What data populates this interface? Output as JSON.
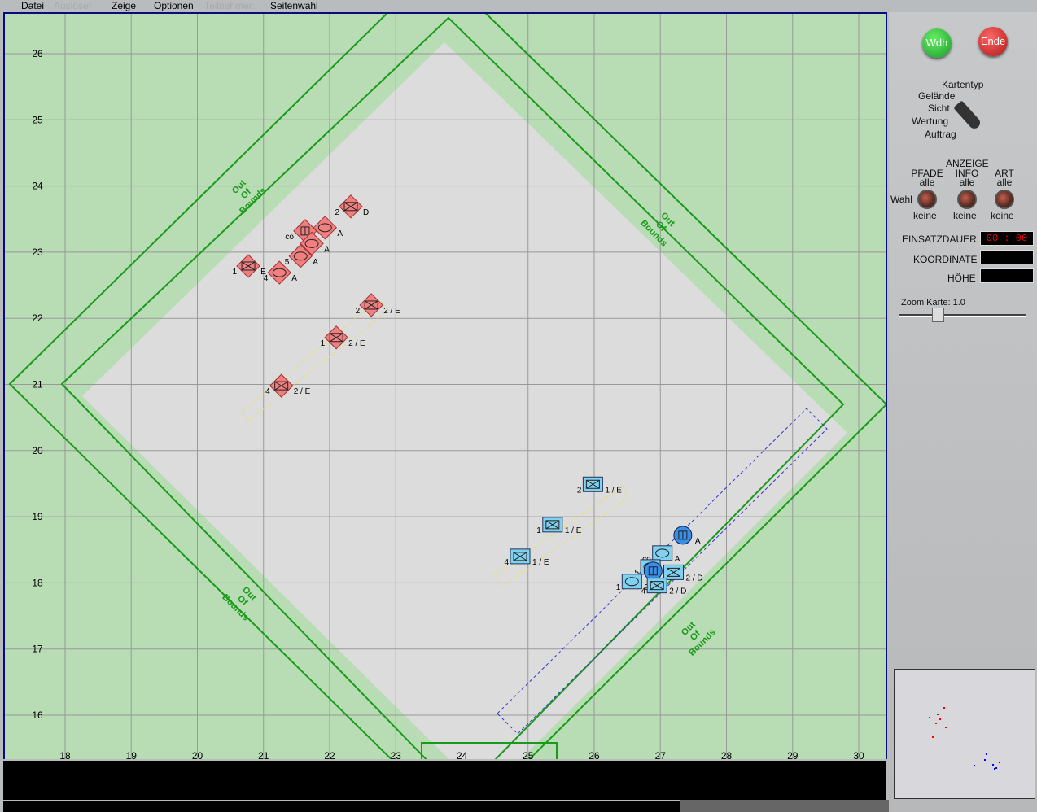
{
  "menu": [
    {
      "label": "Datei",
      "enabled": true
    },
    {
      "label": "Auslöser",
      "enabled": false
    },
    {
      "label": "Zeige",
      "enabled": true
    },
    {
      "label": "Optionen",
      "enabled": true
    },
    {
      "label": "Teilnehmer:",
      "enabled": false
    },
    {
      "label": "Seitenwahl",
      "enabled": true
    }
  ],
  "map": {
    "x_ticks": [
      "18",
      "19",
      "20",
      "21",
      "22",
      "23",
      "24",
      "25",
      "26",
      "27",
      "28",
      "29",
      "30"
    ],
    "y_ticks": [
      "26",
      "25",
      "24",
      "23",
      "22",
      "21",
      "20",
      "19",
      "18",
      "17",
      "16"
    ],
    "out_of_bounds_label": [
      "Out",
      "Of",
      "Bounds"
    ],
    "colors": {
      "terrain": "#b8dcb4",
      "play_area": "#dcdcdc",
      "bounds": "#1a9a1a",
      "red": "#f08080",
      "blue": "#80d0f0"
    },
    "units": [
      {
        "side": "red",
        "type": "x",
        "gx": 22.32,
        "gy": 23.69,
        "left": "2",
        "right": "D"
      },
      {
        "side": "red",
        "type": "iii",
        "gx": 21.63,
        "gy": 23.32,
        "left": "co",
        "right": ""
      },
      {
        "side": "red",
        "type": "oval",
        "gx": 21.93,
        "gy": 23.37,
        "left": "",
        "right": "A"
      },
      {
        "side": "red",
        "type": "oval",
        "gx": 21.73,
        "gy": 23.13,
        "left": "1",
        "right": "A"
      },
      {
        "side": "red",
        "type": "oval",
        "gx": 21.56,
        "gy": 22.94,
        "left": "5",
        "right": "A"
      },
      {
        "side": "red",
        "type": "x",
        "gx": 20.77,
        "gy": 22.79,
        "left": "1",
        "right": "E"
      },
      {
        "side": "red",
        "type": "oval",
        "gx": 21.24,
        "gy": 22.69,
        "left": "4",
        "right": "A"
      },
      {
        "side": "red",
        "type": "x",
        "gx": 22.63,
        "gy": 22.2,
        "left": "2",
        "right": "2 / E"
      },
      {
        "side": "red",
        "type": "x",
        "gx": 22.1,
        "gy": 21.71,
        "left": "1",
        "right": "2 / E"
      },
      {
        "side": "red",
        "type": "x",
        "gx": 21.27,
        "gy": 20.98,
        "left": "4",
        "right": "2 / E"
      },
      {
        "side": "blue",
        "type": "x",
        "gx": 25.98,
        "gy": 19.49,
        "left": "2",
        "right": "1 / E"
      },
      {
        "side": "blue",
        "type": "x",
        "gx": 25.37,
        "gy": 18.88,
        "left": "1",
        "right": "1 / E"
      },
      {
        "side": "blue",
        "type": "x",
        "gx": 24.88,
        "gy": 18.4,
        "left": "4",
        "right": "1 / E"
      },
      {
        "side": "blue",
        "type": "circle",
        "gx": 27.34,
        "gy": 18.72,
        "left": "",
        "right": "A"
      },
      {
        "side": "blue",
        "type": "oval",
        "gx": 27.03,
        "gy": 18.45,
        "left": "co",
        "right": "A"
      },
      {
        "side": "blue",
        "type": "oval",
        "gx": 26.85,
        "gy": 18.24,
        "left": "5",
        "right": ""
      },
      {
        "side": "blue",
        "type": "x",
        "gx": 27.2,
        "gy": 18.16,
        "left": "",
        "right": "2 / D"
      },
      {
        "side": "blue",
        "type": "oval",
        "gx": 26.57,
        "gy": 18.02,
        "left": "1",
        "right": "2"
      },
      {
        "side": "blue",
        "type": "circle",
        "gx": 26.89,
        "gy": 18.18,
        "left": "",
        "right": ""
      },
      {
        "side": "blue",
        "type": "x",
        "gx": 26.95,
        "gy": 17.96,
        "left": "4",
        "right": "2 / D"
      }
    ]
  },
  "panel": {
    "repeat_button": "Wdh",
    "end_button": "Ende",
    "map_type_title": "Kartentyp",
    "map_types": [
      "Gelände",
      "Sicht",
      "Wertung",
      "Auftrag"
    ],
    "map_type_selected": "Gelände",
    "display_title": "ANZEIGE",
    "select_label": "Wahl",
    "knobs": [
      {
        "title": "PFADE",
        "top": "alle",
        "bottom": "keine"
      },
      {
        "title": "INFO",
        "top": "alle",
        "bottom": "keine"
      },
      {
        "title": "ART",
        "top": "alle",
        "bottom": "keine"
      }
    ],
    "duration_label": "EINSATZDAUER",
    "duration_value": "00 : 00",
    "coordinate_label": "KOORDINATE",
    "height_label": "HÖHE",
    "zoom_label": "Zoom Karte:",
    "zoom_value": "1.0"
  }
}
